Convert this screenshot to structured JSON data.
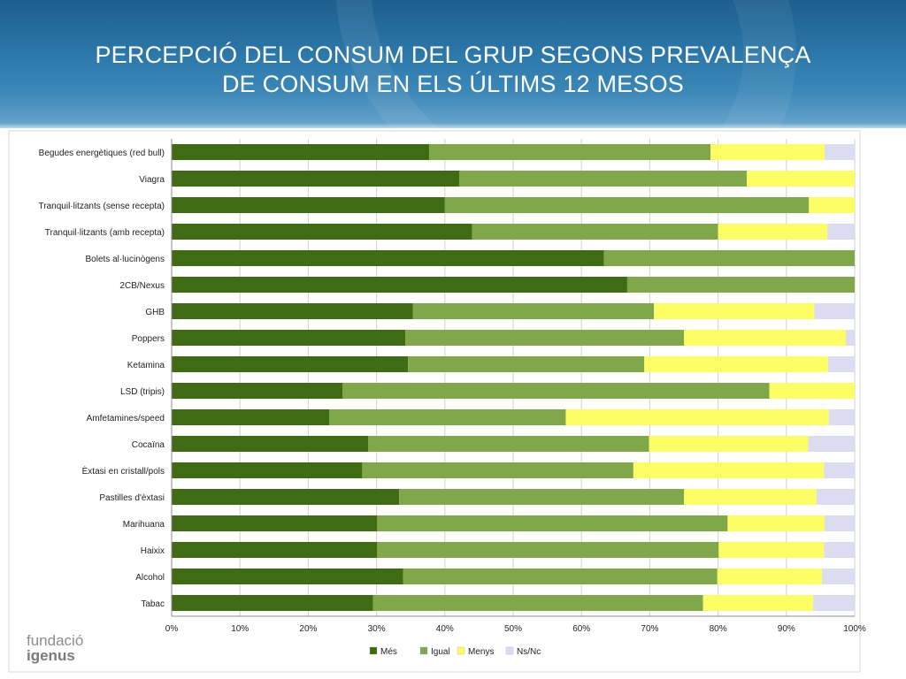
{
  "header": {
    "title_line1": "PERCEPCIÓ DEL CONSUM DEL GRUP SEGONS PREVALENÇA",
    "title_line2": "DE CONSUM EN ELS ÚLTIMS 12 MESOS"
  },
  "logo": {
    "line1": "fundació",
    "line2": "igenus"
  },
  "chart_data": {
    "type": "bar",
    "orientation": "horizontal",
    "stacked": "percent",
    "categories": [
      "Begudes energètiques (red bull)",
      "Viagra",
      "Tranquil·litzants (sense recepta)",
      "Tranquil·litzants (amb recepta)",
      "Bolets al·lucinògens",
      "2CB/Nexus",
      "GHB",
      "Poppers",
      "Ketamina",
      "LSD (tripis)",
      "Amfetamines/speed",
      "Cocaïna",
      "Èxtasi en cristall/pols",
      "Pastilles d'èxtasi",
      "Marihuana",
      "Haixix",
      "Alcohol",
      "Tabac"
    ],
    "series": [
      {
        "name": "Més",
        "color": "#3e6b14",
        "values": [
          37.7,
          42.1,
          40,
          44,
          63.3,
          66.7,
          35.3,
          34.2,
          34.6,
          25,
          23.1,
          28.8,
          27.9,
          33.3,
          30.1,
          30.1,
          33.9,
          29.5
        ]
      },
      {
        "name": "Igual",
        "color": "#80a84a",
        "values": [
          41.2,
          42.1,
          53.3,
          36,
          36.7,
          33.3,
          35.3,
          40.8,
          34.6,
          62.5,
          34.6,
          41.1,
          39.7,
          41.7,
          51.3,
          50,
          46,
          48.3
        ]
      },
      {
        "name": "Menys",
        "color": "#fdfd66",
        "values": [
          16.7,
          15.8,
          6.7,
          16,
          0,
          0,
          23.5,
          23.7,
          26.9,
          12.5,
          38.5,
          23.3,
          27.9,
          19.4,
          14.2,
          15.4,
          15.3,
          16.1
        ]
      },
      {
        "name": "Ns/Nc",
        "color": "#dcdcf0",
        "values": [
          4.4,
          0,
          0,
          4,
          0,
          0,
          5.9,
          1.3,
          3.9,
          0,
          3.8,
          6.8,
          4.5,
          5.6,
          4.4,
          4.5,
          4.8,
          6.1
        ]
      }
    ],
    "xlim": [
      0,
      100
    ],
    "xticks": [
      "0%",
      "10%",
      "20%",
      "30%",
      "40%",
      "50%",
      "60%",
      "70%",
      "80%",
      "90%",
      "100%"
    ],
    "grid": true,
    "legend_position": "bottom"
  }
}
